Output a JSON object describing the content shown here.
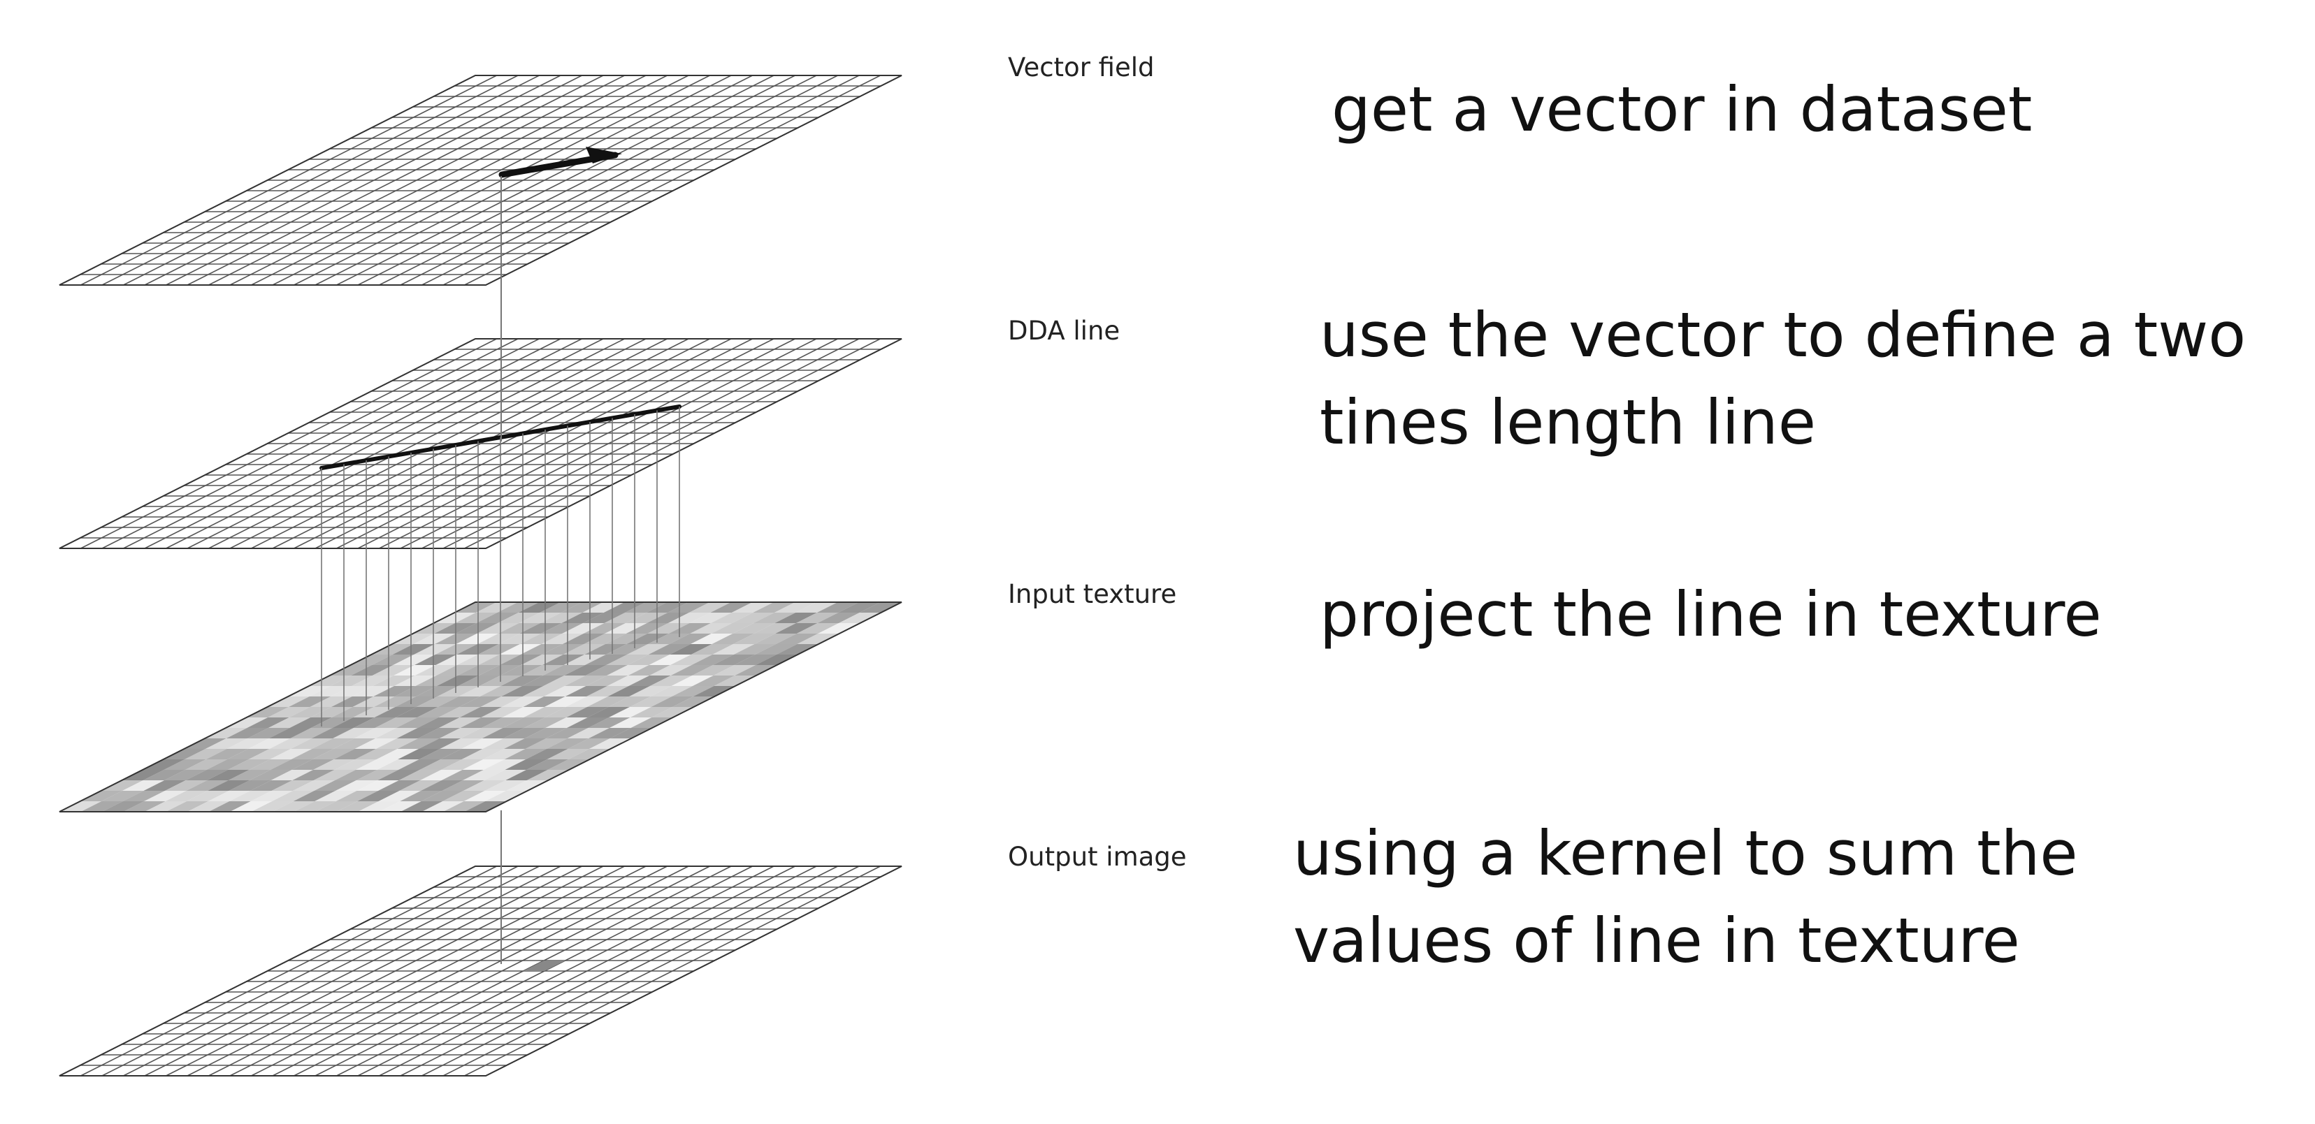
{
  "layers": [
    {
      "id": "vector-field",
      "label": "Vector field",
      "description": [
        "get a vector in dataset"
      ]
    },
    {
      "id": "dda-line",
      "label": "DDA line",
      "description": [
        "use the vector to define a two",
        "tines length line"
      ]
    },
    {
      "id": "input-texture",
      "label": "Input texture",
      "description": [
        "project the line in texture"
      ]
    },
    {
      "id": "output-image",
      "label": "Output image",
      "description": [
        "using a kernel to sum the",
        "values of line in texture"
      ]
    }
  ],
  "colors": {
    "grid_line": "#555555",
    "arrow": "#111111",
    "projection_line": "#777777",
    "texture_light": "#f2f2f2",
    "texture_dark": "#8a8a8a"
  },
  "grid": {
    "rows": 20,
    "cols": 20
  }
}
